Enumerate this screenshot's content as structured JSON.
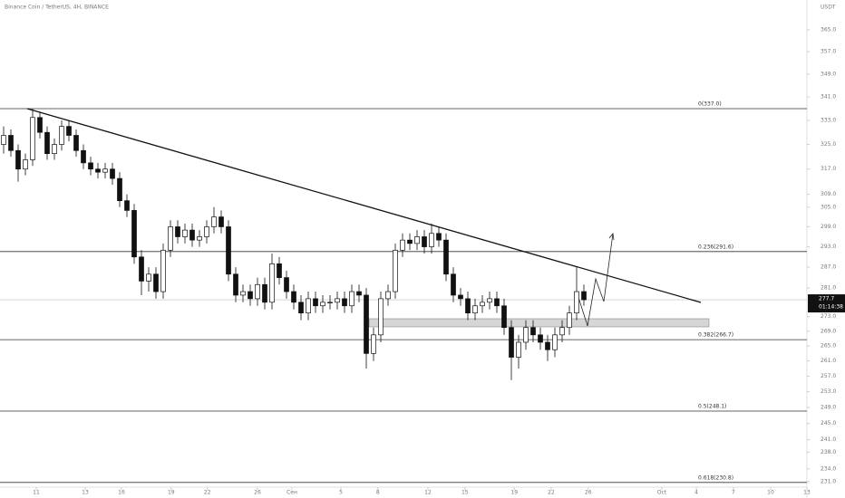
{
  "chart_data": {
    "type": "candlestick",
    "title": "Binance Coin / TetherUS, 4H, BINANCE",
    "y_axis_label": "USDT",
    "log_scale": true,
    "ylim": [
      229.7,
      376.2
    ],
    "yticks": [
      {
        "value": 365,
        "label": "365.0"
      },
      {
        "value": 357,
        "label": "357.0"
      },
      {
        "value": 349,
        "label": "349.0"
      },
      {
        "value": 341,
        "label": "341.0"
      },
      {
        "value": 333,
        "label": "333.0"
      },
      {
        "value": 325,
        "label": "325.0"
      },
      {
        "value": 317,
        "label": "317.0"
      },
      {
        "value": 309,
        "label": "309.0"
      },
      {
        "value": 305,
        "label": "305.0"
      },
      {
        "value": 299,
        "label": "299.0"
      },
      {
        "value": 293,
        "label": "293.0"
      },
      {
        "value": 287,
        "label": "287.0"
      },
      {
        "value": 281,
        "label": "281.0"
      },
      {
        "value": 273,
        "label": "273.0"
      },
      {
        "value": 269,
        "label": "269.0"
      },
      {
        "value": 265,
        "label": "265.0"
      },
      {
        "value": 261,
        "label": "261.0"
      },
      {
        "value": 257,
        "label": "257.0"
      },
      {
        "value": 253,
        "label": "253.0"
      },
      {
        "value": 249,
        "label": "249.0"
      },
      {
        "value": 245,
        "label": "245.0"
      },
      {
        "value": 241,
        "label": "241.0"
      },
      {
        "value": 238,
        "label": "238.0"
      },
      {
        "value": 234,
        "label": "234.0"
      },
      {
        "value": 231,
        "label": "231.0"
      }
    ],
    "xlim": [
      -0.5,
      110.75
    ],
    "xticks": [
      {
        "value": 4.5,
        "label": "11"
      },
      {
        "value": 11.25,
        "label": "13"
      },
      {
        "value": 16.25,
        "label": "16"
      },
      {
        "value": 23.1,
        "label": "19"
      },
      {
        "value": 28.1,
        "label": "22"
      },
      {
        "value": 35,
        "label": "26"
      },
      {
        "value": 39.75,
        "label": "Сен"
      },
      {
        "value": 46.5,
        "label": "5"
      },
      {
        "value": 51.6,
        "label": "8"
      },
      {
        "value": 58.5,
        "label": "12"
      },
      {
        "value": 63.6,
        "label": "15"
      },
      {
        "value": 70.4,
        "label": "19"
      },
      {
        "value": 75.5,
        "label": "22"
      },
      {
        "value": 80.6,
        "label": "26"
      },
      {
        "value": 90.75,
        "label": "Oct"
      },
      {
        "value": 95.5,
        "label": "4"
      },
      {
        "value": 100.6,
        "label": "7"
      },
      {
        "value": 105.75,
        "label": "10"
      },
      {
        "value": 110.75,
        "label": "13"
      }
    ],
    "open": [
      325,
      328,
      323,
      317,
      320,
      334,
      329,
      322,
      325,
      331,
      328,
      323,
      319,
      317,
      316,
      317,
      314,
      307,
      304,
      290,
      283,
      285,
      280,
      292,
      299,
      296,
      298,
      295,
      296,
      299,
      302,
      299,
      285,
      279,
      280,
      278,
      282,
      277,
      288,
      284,
      280,
      277,
      274,
      278,
      276,
      277,
      277,
      278,
      276,
      280,
      279,
      263,
      268,
      278,
      280,
      292,
      295,
      294,
      296,
      293,
      297,
      295,
      285,
      279,
      278,
      274,
      276,
      277,
      278,
      276,
      270,
      262,
      266,
      270,
      268,
      266,
      264,
      268,
      270,
      274,
      280
    ],
    "high": [
      331,
      330,
      325,
      322,
      337,
      336,
      331,
      327,
      333,
      333,
      330,
      325,
      321,
      319,
      319,
      319,
      316,
      309,
      306,
      292,
      287,
      287,
      294,
      301,
      301,
      300,
      300,
      298,
      301,
      305,
      304,
      301,
      287,
      282,
      282,
      284,
      284,
      291,
      290,
      286,
      282,
      279,
      280,
      280,
      279,
      279,
      280,
      280,
      282,
      282,
      281,
      270,
      280,
      282,
      294,
      297,
      297,
      298,
      298,
      300,
      299,
      297,
      287,
      281,
      280,
      278,
      279,
      280,
      280,
      278,
      272,
      268,
      272,
      272,
      270,
      268,
      270,
      272,
      276,
      287,
      282
    ],
    "low": [
      322,
      321,
      313,
      315,
      318,
      327,
      320,
      320,
      323,
      326,
      321,
      317,
      315,
      314,
      314,
      312,
      305,
      302,
      288,
      279,
      280,
      278,
      278,
      290,
      294,
      294,
      293,
      293,
      294,
      297,
      297,
      283,
      277,
      277,
      276,
      276,
      275,
      275,
      282,
      278,
      275,
      272,
      272,
      274,
      274,
      275,
      275,
      274,
      274,
      277,
      259,
      261,
      266,
      276,
      278,
      290,
      292,
      292,
      291,
      291,
      293,
      283,
      277,
      276,
      272,
      272,
      274,
      275,
      274,
      268,
      256,
      259,
      264,
      266,
      264,
      261,
      262,
      266,
      268,
      272,
      276
    ],
    "close": [
      328,
      323,
      317,
      320,
      334,
      329,
      322,
      325,
      331,
      328,
      323,
      319,
      317,
      316,
      317,
      314,
      307,
      304,
      290,
      283,
      285,
      280,
      292,
      299,
      296,
      298,
      295,
      296,
      299,
      302,
      299,
      285,
      279,
      280,
      278,
      282,
      277,
      288,
      284,
      280,
      277,
      274,
      278,
      276,
      277,
      277,
      278,
      276,
      280,
      279,
      263,
      268,
      278,
      280,
      292,
      295,
      294,
      296,
      293,
      297,
      295,
      285,
      279,
      278,
      274,
      276,
      277,
      278,
      276,
      270,
      262,
      266,
      270,
      268,
      266,
      264,
      268,
      270,
      274,
      280,
      277.7
    ],
    "levels": [
      {
        "label": "0(337.0)",
        "value": 337
      },
      {
        "label": "0.236(291.6)",
        "value": 291.6
      },
      {
        "label": "0.382(266.7)",
        "value": 266.7
      },
      {
        "label": "0.5(248.1)",
        "value": 248.1
      },
      {
        "label": "0.618(230.8)",
        "value": 230.8
      }
    ],
    "last_price": {
      "value": 277.7,
      "label": "277.7"
    },
    "countdown": "01:14:38"
  }
}
